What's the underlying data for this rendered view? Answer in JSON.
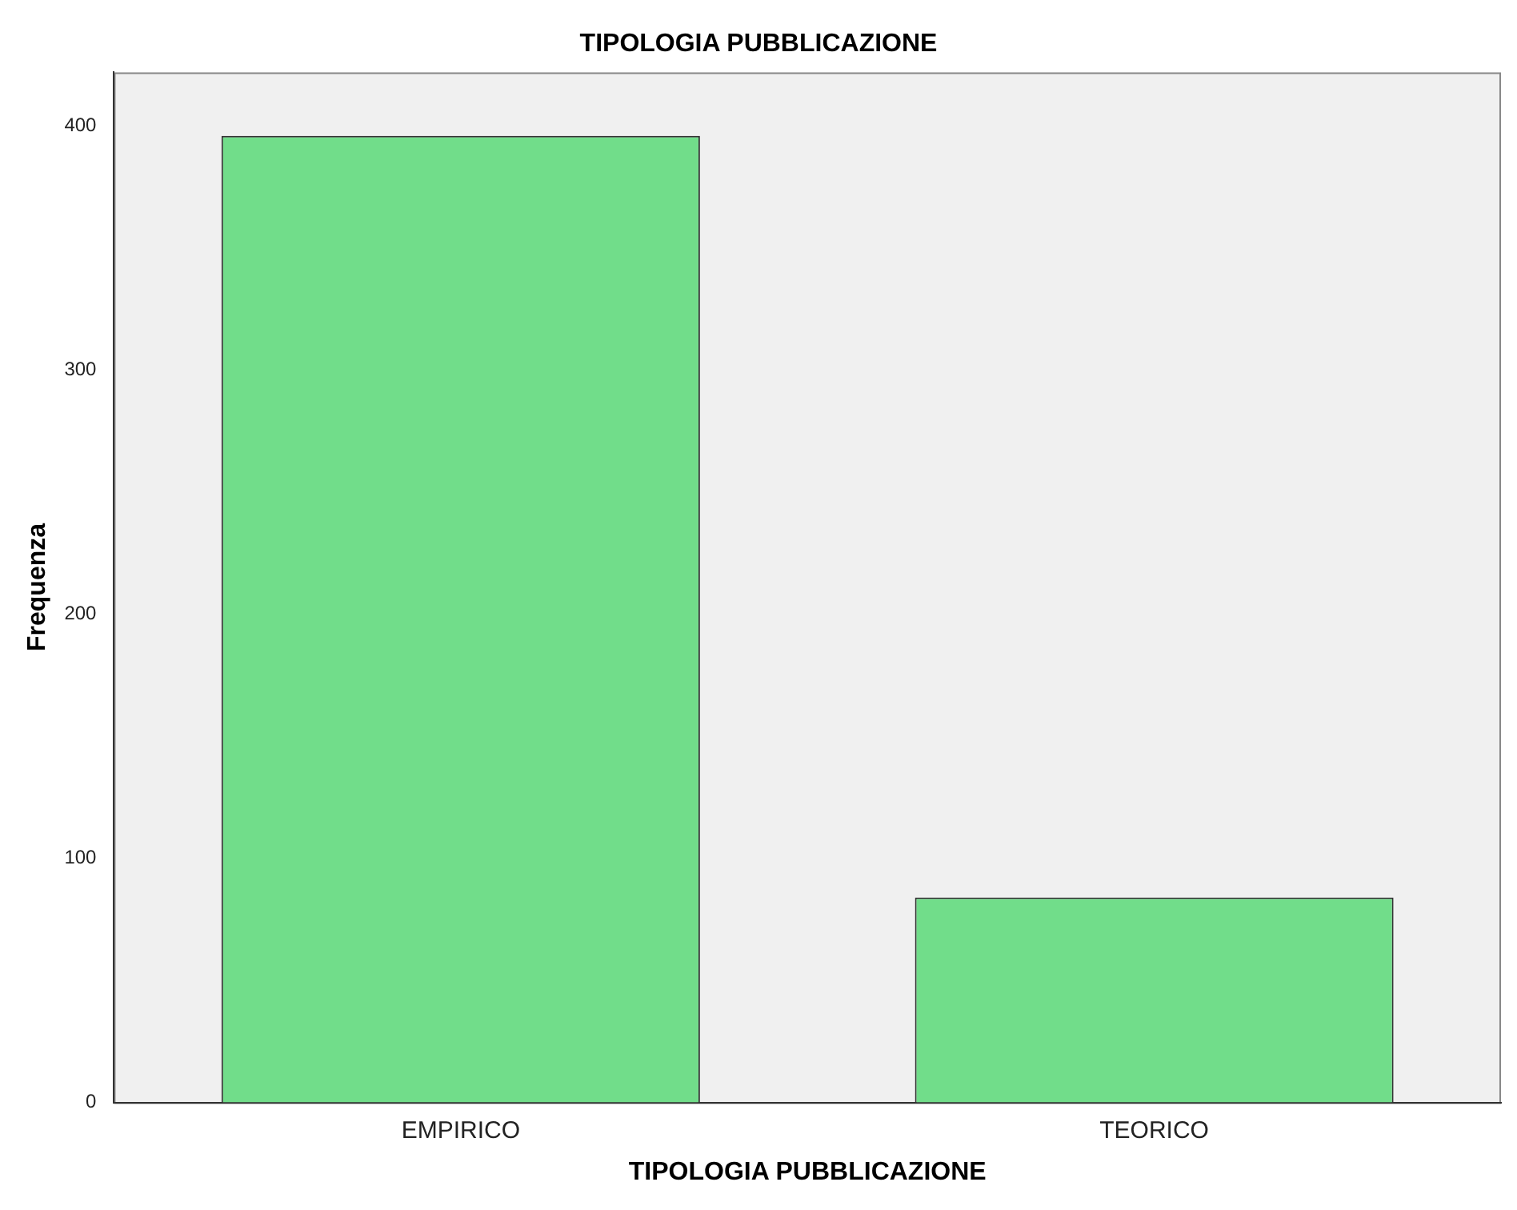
{
  "chart_data": {
    "type": "bar",
    "title": "TIPOLOGIA PUBBLICAZIONE",
    "xlabel": "TIPOLOGIA PUBBLICAZIONE",
    "ylabel": "Frequenza",
    "categories": [
      "EMPIRICO",
      "TEORICO"
    ],
    "values": [
      396,
      84
    ],
    "color": "#71dd8a",
    "ylim": [
      0,
      422
    ],
    "yticks": [
      0,
      100,
      200,
      300,
      400
    ],
    "grid": false,
    "legend": false
  }
}
